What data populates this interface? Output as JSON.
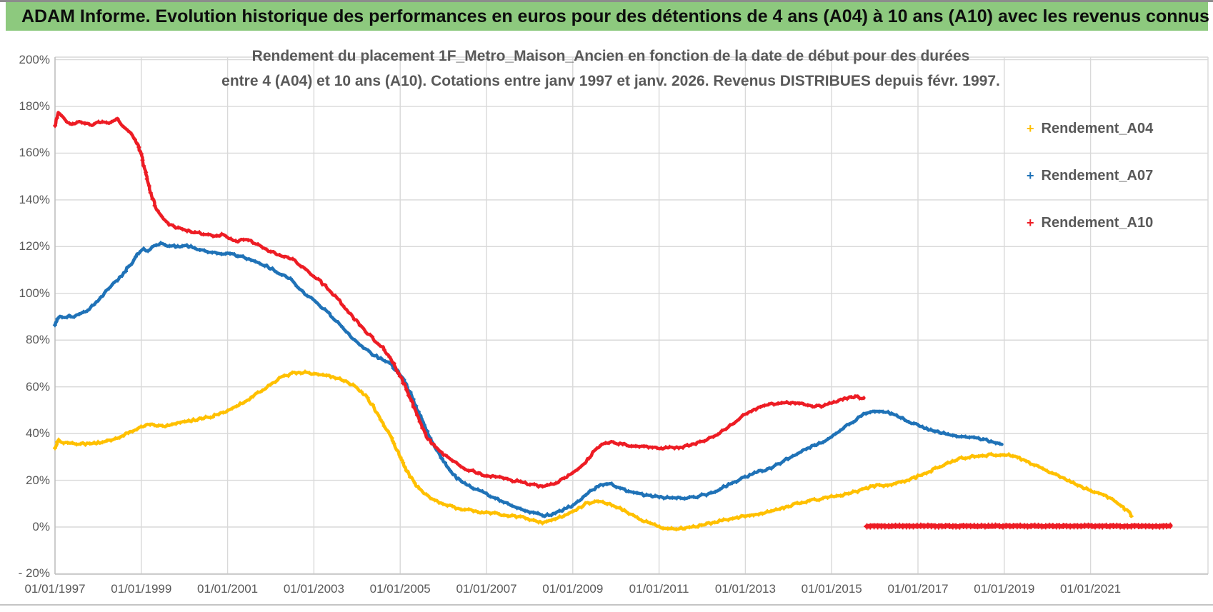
{
  "header": {
    "title": "ADAM Informe. Evolution historique des performances en euros pour des détentions de 4 ans (A04) à 10 ans (A10) avec les revenus connus distribués",
    "background": "#8DC97E",
    "accent_gold": "#F2B01E"
  },
  "chart_data": {
    "type": "line",
    "title_lines": [
      "Rendement du placement 1F_Metro_Maison_Ancien en fonction de la date de début pour des durées",
      "entre 4 (A04) et 10 ans (A10). Cotations entre janv 1997 et janv. 2026. Revenus DISTRIBUES depuis févr. 1997."
    ],
    "marker_glyph": "+",
    "grid_color": "#D9D9D9",
    "axis_color": "#BFBFBF",
    "text_color": "#595959",
    "x_domain": [
      1997,
      2023.7
    ],
    "y_domain": [
      -20,
      200
    ],
    "y_ticks": [
      {
        "label": "200%",
        "value": 200
      },
      {
        "label": "180%",
        "value": 180
      },
      {
        "label": "160%",
        "value": 160
      },
      {
        "label": "140%",
        "value": 140
      },
      {
        "label": "120%",
        "value": 120
      },
      {
        "label": "100%",
        "value": 100
      },
      {
        "label": "80%",
        "value": 80
      },
      {
        "label": "60%",
        "value": 60
      },
      {
        "label": "40%",
        "value": 40
      },
      {
        "label": "20%",
        "value": 20
      },
      {
        "label": "0%",
        "value": 0
      },
      {
        "label": "- 20%",
        "value": -20
      }
    ],
    "x_ticks": [
      {
        "label": "01/01/1997",
        "year": 1997
      },
      {
        "label": "01/01/1999",
        "year": 1999
      },
      {
        "label": "01/01/2001",
        "year": 2001
      },
      {
        "label": "01/01/2003",
        "year": 2003
      },
      {
        "label": "01/01/2005",
        "year": 2005
      },
      {
        "label": "01/01/2007",
        "year": 2007
      },
      {
        "label": "01/01/2009",
        "year": 2009
      },
      {
        "label": "01/01/2011",
        "year": 2011
      },
      {
        "label": "01/01/2013",
        "year": 2013
      },
      {
        "label": "01/01/2015",
        "year": 2015
      },
      {
        "label": "01/01/2017",
        "year": 2017
      },
      {
        "label": "01/01/2019",
        "year": 2019
      },
      {
        "label": "01/01/2021",
        "year": 2021
      }
    ],
    "legend": [
      {
        "name": "Rendement_A04",
        "color": "#FFC000"
      },
      {
        "name": "Rendement_A07",
        "color": "#1F72B7"
      },
      {
        "name": "Rendement_A10",
        "color": "#ED1C24"
      }
    ],
    "series": [
      {
        "name": "Rendement_A04",
        "color": "#FFC000",
        "points": [
          [
            1997.0,
            33.8
          ],
          [
            1997.08,
            37.3
          ],
          [
            1997.2,
            36.0
          ],
          [
            1997.4,
            35.7
          ],
          [
            1997.6,
            35.7
          ],
          [
            1997.8,
            35.6
          ],
          [
            1998.0,
            36.0
          ],
          [
            1998.25,
            36.8
          ],
          [
            1998.5,
            38.5
          ],
          [
            1998.75,
            40.8
          ],
          [
            1999.0,
            43.0
          ],
          [
            1999.2,
            43.8
          ],
          [
            1999.45,
            43.5
          ],
          [
            1999.6,
            43.3
          ],
          [
            1999.8,
            44.3
          ],
          [
            2000.0,
            45.0
          ],
          [
            2000.3,
            46.0
          ],
          [
            2000.6,
            47.2
          ],
          [
            2000.9,
            48.8
          ],
          [
            2001.2,
            51.5
          ],
          [
            2001.5,
            54.8
          ],
          [
            2001.8,
            58.5
          ],
          [
            2002.0,
            61.0
          ],
          [
            2002.2,
            63.8
          ],
          [
            2002.45,
            65.5
          ],
          [
            2002.65,
            66.3
          ],
          [
            2002.85,
            66.0
          ],
          [
            2003.1,
            65.3
          ],
          [
            2003.35,
            64.5
          ],
          [
            2003.6,
            63.5
          ],
          [
            2003.8,
            61.8
          ],
          [
            2004.0,
            59.5
          ],
          [
            2004.2,
            56.0
          ],
          [
            2004.4,
            51.0
          ],
          [
            2004.6,
            44.5
          ],
          [
            2004.8,
            38.0
          ],
          [
            2005.0,
            30.0
          ],
          [
            2005.2,
            22.5
          ],
          [
            2005.45,
            16.0
          ],
          [
            2005.7,
            12.5
          ],
          [
            2006.0,
            10.0
          ],
          [
            2006.3,
            8.2
          ],
          [
            2006.8,
            6.5
          ],
          [
            2007.3,
            5.5
          ],
          [
            2007.6,
            4.8
          ],
          [
            2007.9,
            3.9
          ],
          [
            2008.15,
            2.6
          ],
          [
            2008.3,
            2.0
          ],
          [
            2008.55,
            3.1
          ],
          [
            2008.8,
            4.8
          ],
          [
            2009.05,
            6.8
          ],
          [
            2009.3,
            9.8
          ],
          [
            2009.5,
            11.0
          ],
          [
            2009.75,
            10.5
          ],
          [
            2010.1,
            8.0
          ],
          [
            2010.5,
            3.8
          ],
          [
            2010.85,
            1.0
          ],
          [
            2011.1,
            -0.3
          ],
          [
            2011.4,
            -0.8
          ],
          [
            2011.7,
            -0.4
          ],
          [
            2012.1,
            1.3
          ],
          [
            2012.6,
            3.4
          ],
          [
            2013.2,
            5.3
          ],
          [
            2013.6,
            6.8
          ],
          [
            2014.2,
            10.0
          ],
          [
            2014.75,
            12.2
          ],
          [
            2015.3,
            13.8
          ],
          [
            2015.6,
            15.2
          ],
          [
            2015.85,
            16.8
          ],
          [
            2016.1,
            18.2
          ],
          [
            2016.3,
            17.6
          ],
          [
            2016.6,
            19.2
          ],
          [
            2016.95,
            21.2
          ],
          [
            2017.5,
            25.8
          ],
          [
            2018.0,
            29.5
          ],
          [
            2018.4,
            30.6
          ],
          [
            2018.8,
            31.0
          ],
          [
            2019.1,
            30.8
          ],
          [
            2019.35,
            29.6
          ],
          [
            2019.6,
            27.4
          ],
          [
            2019.9,
            24.9
          ],
          [
            2020.25,
            21.8
          ],
          [
            2020.6,
            19.0
          ],
          [
            2020.9,
            16.2
          ],
          [
            2021.2,
            14.2
          ],
          [
            2021.45,
            12.3
          ],
          [
            2021.7,
            9.6
          ],
          [
            2021.85,
            7.0
          ],
          [
            2021.95,
            5.0
          ]
        ]
      },
      {
        "name": "Rendement_A07",
        "color": "#1F72B7",
        "points": [
          [
            1997.0,
            86.5
          ],
          [
            1997.05,
            88.8
          ],
          [
            1997.12,
            90.2
          ],
          [
            1997.22,
            89.3
          ],
          [
            1997.32,
            90.6
          ],
          [
            1997.45,
            90.0
          ],
          [
            1997.6,
            91.3
          ],
          [
            1997.8,
            93.5
          ],
          [
            1998.0,
            97.0
          ],
          [
            1998.15,
            100.0
          ],
          [
            1998.35,
            104.0
          ],
          [
            1998.55,
            108.0
          ],
          [
            1998.75,
            112.5
          ],
          [
            1998.95,
            117.5
          ],
          [
            1999.05,
            118.8
          ],
          [
            1999.15,
            118.0
          ],
          [
            1999.3,
            120.0
          ],
          [
            1999.45,
            121.2
          ],
          [
            1999.65,
            120.4
          ],
          [
            1999.85,
            120.0
          ],
          [
            2000.05,
            120.3
          ],
          [
            2000.3,
            119.2
          ],
          [
            2000.6,
            117.8
          ],
          [
            2000.9,
            117.0
          ],
          [
            2001.1,
            116.7
          ],
          [
            2001.3,
            115.8
          ],
          [
            2001.5,
            114.7
          ],
          [
            2001.7,
            113.4
          ],
          [
            2001.95,
            111.3
          ],
          [
            2002.2,
            108.8
          ],
          [
            2002.45,
            106.2
          ],
          [
            2002.7,
            101.2
          ],
          [
            2003.05,
            96.3
          ],
          [
            2003.4,
            90.2
          ],
          [
            2003.7,
            84.4
          ],
          [
            2004.0,
            78.9
          ],
          [
            2004.35,
            74.0
          ],
          [
            2004.55,
            72.0
          ],
          [
            2004.75,
            70.0
          ],
          [
            2004.95,
            66.5
          ],
          [
            2005.15,
            61.0
          ],
          [
            2005.4,
            50.0
          ],
          [
            2005.7,
            38.0
          ],
          [
            2006.0,
            28.0
          ],
          [
            2006.3,
            21.0
          ],
          [
            2006.8,
            15.7
          ],
          [
            2007.3,
            11.6
          ],
          [
            2007.6,
            8.8
          ],
          [
            2007.9,
            7.0
          ],
          [
            2008.1,
            6.2
          ],
          [
            2008.35,
            4.9
          ],
          [
            2008.6,
            5.8
          ],
          [
            2008.8,
            7.5
          ],
          [
            2009.05,
            9.8
          ],
          [
            2009.25,
            13.0
          ],
          [
            2009.45,
            16.0
          ],
          [
            2009.65,
            17.8
          ],
          [
            2009.85,
            18.6
          ],
          [
            2010.15,
            16.2
          ],
          [
            2010.6,
            13.8
          ],
          [
            2011.0,
            12.8
          ],
          [
            2011.4,
            12.4
          ],
          [
            2011.8,
            12.7
          ],
          [
            2012.15,
            14.2
          ],
          [
            2012.6,
            18.0
          ],
          [
            2013.2,
            23.0
          ],
          [
            2013.6,
            25.4
          ],
          [
            2014.2,
            31.5
          ],
          [
            2014.75,
            36.1
          ],
          [
            2015.05,
            39.5
          ],
          [
            2015.35,
            43.5
          ],
          [
            2015.6,
            46.5
          ],
          [
            2015.85,
            49.3
          ],
          [
            2016.05,
            49.8
          ],
          [
            2016.25,
            49.2
          ],
          [
            2016.5,
            47.8
          ],
          [
            2016.75,
            45.5
          ],
          [
            2017.0,
            43.4
          ],
          [
            2017.3,
            41.4
          ],
          [
            2017.6,
            40.3
          ],
          [
            2017.85,
            39.2
          ],
          [
            2018.1,
            38.7
          ],
          [
            2018.35,
            38.2
          ],
          [
            2018.6,
            37.0
          ],
          [
            2018.8,
            36.2
          ],
          [
            2018.95,
            35.6
          ]
        ]
      },
      {
        "name": "Rendement_A10",
        "color": "#ED1C24",
        "points": [
          [
            1997.0,
            172.0
          ],
          [
            1997.08,
            177.0
          ],
          [
            1997.18,
            175.3
          ],
          [
            1997.28,
            173.6
          ],
          [
            1997.42,
            172.3
          ],
          [
            1997.56,
            173.2
          ],
          [
            1997.7,
            172.6
          ],
          [
            1997.85,
            172.2
          ],
          [
            1998.0,
            173.6
          ],
          [
            1998.15,
            172.8
          ],
          [
            1998.3,
            173.0
          ],
          [
            1998.45,
            174.5
          ],
          [
            1998.6,
            171.5
          ],
          [
            1998.75,
            168.5
          ],
          [
            1998.9,
            164.5
          ],
          [
            1999.0,
            159.5
          ],
          [
            1999.1,
            151.5
          ],
          [
            1999.22,
            142.5
          ],
          [
            1999.35,
            136.0
          ],
          [
            1999.5,
            131.5
          ],
          [
            1999.65,
            129.3
          ],
          [
            1999.85,
            128.0
          ],
          [
            2000.05,
            126.8
          ],
          [
            2000.3,
            126.0
          ],
          [
            2000.55,
            124.9
          ],
          [
            2000.75,
            124.6
          ],
          [
            2000.92,
            125.2
          ],
          [
            2001.08,
            123.2
          ],
          [
            2001.18,
            122.1
          ],
          [
            2001.32,
            123.1
          ],
          [
            2001.48,
            122.7
          ],
          [
            2001.65,
            121.3
          ],
          [
            2001.8,
            119.8
          ],
          [
            2002.0,
            117.9
          ],
          [
            2002.25,
            116.0
          ],
          [
            2002.45,
            115.0
          ],
          [
            2002.65,
            112.6
          ],
          [
            2002.85,
            109.4
          ],
          [
            2003.1,
            106.0
          ],
          [
            2003.35,
            101.5
          ],
          [
            2003.6,
            96.5
          ],
          [
            2003.85,
            91.0
          ],
          [
            2004.1,
            85.5
          ],
          [
            2004.35,
            81.0
          ],
          [
            2004.6,
            76.5
          ],
          [
            2004.85,
            70.0
          ],
          [
            2005.1,
            61.0
          ],
          [
            2005.35,
            50.0
          ],
          [
            2005.6,
            39.0
          ],
          [
            2005.9,
            32.5
          ],
          [
            2006.2,
            28.5
          ],
          [
            2006.5,
            25.0
          ],
          [
            2007.0,
            22.0
          ],
          [
            2007.35,
            21.0
          ],
          [
            2007.7,
            19.6
          ],
          [
            2008.0,
            18.3
          ],
          [
            2008.3,
            17.3
          ],
          [
            2008.55,
            18.3
          ],
          [
            2008.8,
            20.8
          ],
          [
            2009.05,
            24.0
          ],
          [
            2009.3,
            28.0
          ],
          [
            2009.5,
            32.5
          ],
          [
            2009.7,
            35.8
          ],
          [
            2009.9,
            36.2
          ],
          [
            2010.15,
            35.5
          ],
          [
            2010.5,
            34.5
          ],
          [
            2010.9,
            33.9
          ],
          [
            2011.2,
            33.8
          ],
          [
            2011.55,
            34.3
          ],
          [
            2011.85,
            35.6
          ],
          [
            2012.15,
            37.8
          ],
          [
            2012.45,
            41.0
          ],
          [
            2012.75,
            45.0
          ],
          [
            2013.05,
            48.8
          ],
          [
            2013.35,
            51.5
          ],
          [
            2013.65,
            52.8
          ],
          [
            2013.95,
            53.4
          ],
          [
            2014.2,
            53.1
          ],
          [
            2014.45,
            52.2
          ],
          [
            2014.65,
            51.6
          ],
          [
            2014.9,
            52.4
          ],
          [
            2015.15,
            54.2
          ],
          [
            2015.4,
            55.4
          ],
          [
            2015.6,
            55.7
          ],
          [
            2015.75,
            54.8
          ]
        ],
        "flat_zero": {
          "from": 2015.82,
          "to": 2022.85,
          "value": 0.4
        }
      }
    ]
  }
}
